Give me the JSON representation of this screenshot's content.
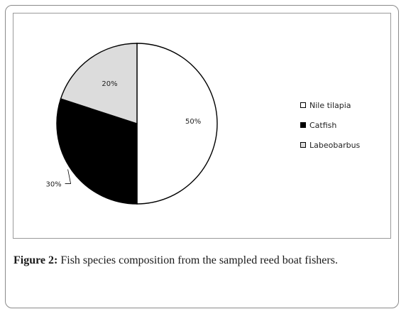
{
  "chart_data": {
    "type": "pie",
    "slices": [
      {
        "label": "Nile tilapia",
        "value": 50,
        "value_label": "50%",
        "color": "#ffffff"
      },
      {
        "label": "Catfish",
        "value": 30,
        "value_label": "30%",
        "color": "#000000"
      },
      {
        "label": "Labeobarbus",
        "value": 20,
        "value_label": "20%",
        "color": "#dcdcdc"
      }
    ],
    "legend_position": "right"
  },
  "caption": {
    "label": "Figure 2:",
    "text": " Fish species composition from the sampled reed boat fishers."
  }
}
